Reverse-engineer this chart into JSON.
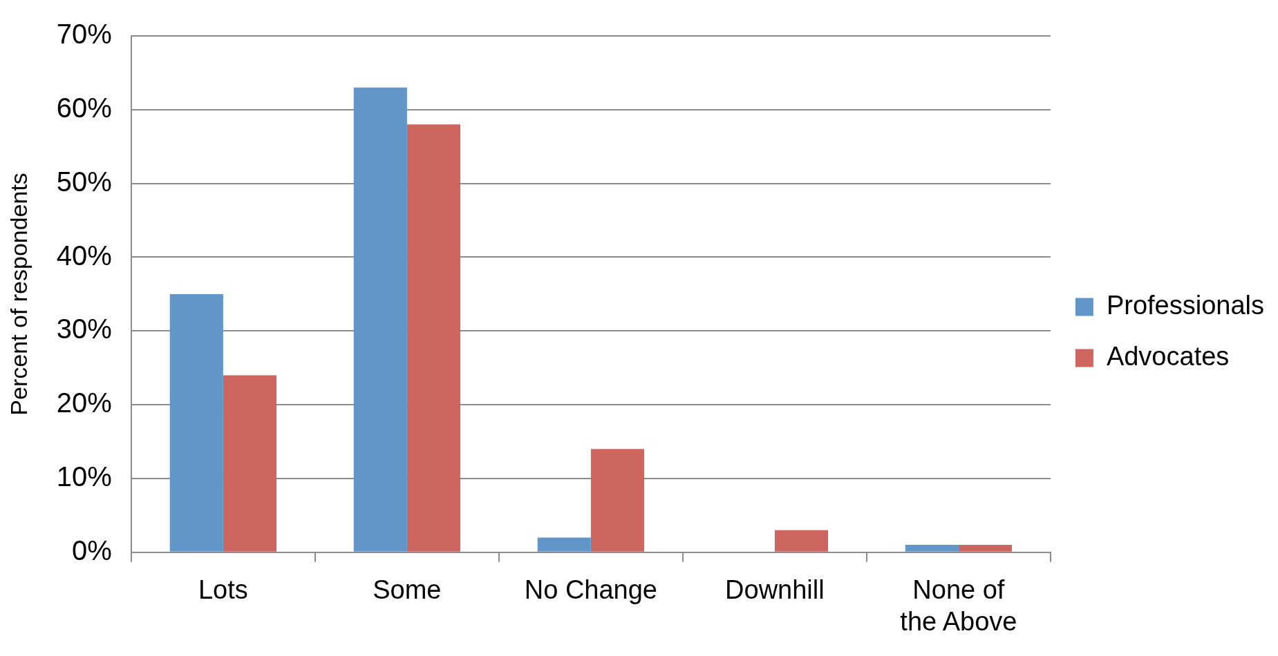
{
  "chart_data": {
    "type": "bar",
    "ylabel": "Percent of respondents",
    "categories": [
      "Lots",
      "Some",
      "No Change",
      "Downhill",
      "None of the Above"
    ],
    "series": [
      {
        "name": "Professionals",
        "color": "#6296c9",
        "values": [
          35,
          63,
          2,
          0,
          1
        ]
      },
      {
        "name": "Advocates",
        "color": "#cd665f",
        "values": [
          24,
          58,
          14,
          3,
          1
        ]
      }
    ],
    "ylim": [
      0,
      70
    ],
    "yticks": [
      {
        "value": 0,
        "label": "0%"
      },
      {
        "value": 10,
        "label": "10%"
      },
      {
        "value": 20,
        "label": "20%"
      },
      {
        "value": 30,
        "label": "30%"
      },
      {
        "value": 40,
        "label": "40%"
      },
      {
        "value": 50,
        "label": "50%"
      },
      {
        "value": 60,
        "label": "60%"
      },
      {
        "value": 70,
        "label": "70%"
      }
    ],
    "grid": "y",
    "legend": "right"
  }
}
